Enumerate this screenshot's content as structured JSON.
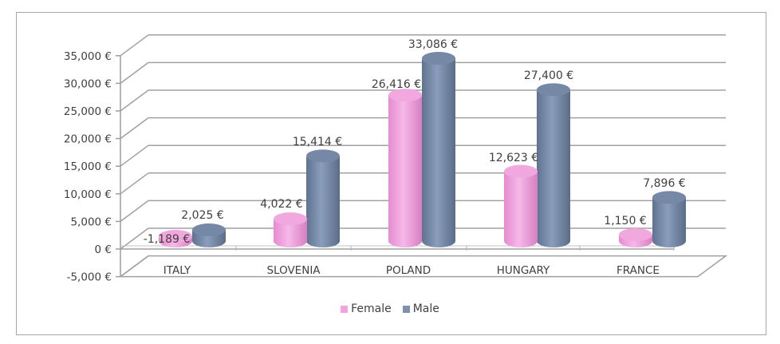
{
  "chart_data": {
    "type": "bar",
    "title": "",
    "xlabel": "",
    "ylabel": "",
    "categories": [
      "ITALY",
      "SLOVENIA",
      "POLAND",
      "HUNGARY",
      "FRANCE"
    ],
    "series": [
      {
        "name": "Female",
        "color": "#f2a3de",
        "values": [
          -1189,
          4022,
          26416,
          12623,
          1150
        ],
        "labels": [
          "-1,189 €",
          "4,022 €",
          "26,416 €",
          "12,623 €",
          "1,150 €"
        ]
      },
      {
        "name": "Male",
        "color": "#7d91ae",
        "values": [
          2025,
          15414,
          33086,
          27400,
          7896
        ],
        "labels": [
          "2,025 €",
          "15,414 €",
          "33,086 €",
          "27,400 €",
          "7,896 €"
        ]
      }
    ],
    "ylim": [
      -5000,
      35000
    ],
    "yticks": [
      "35,000 €",
      "30,000 €",
      "25,000 €",
      "20,000 €",
      "15,000 €",
      "10,000 €",
      "5,000 €",
      "0 €",
      "-5,000 €"
    ],
    "grid": true,
    "legend_position": "bottom",
    "style": "3d-cylinder"
  },
  "legend": {
    "female_label": "Female",
    "male_label": "Male"
  }
}
